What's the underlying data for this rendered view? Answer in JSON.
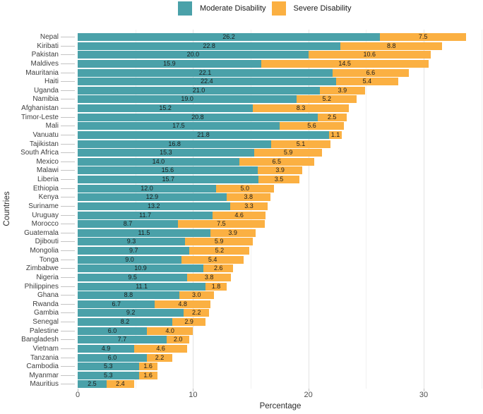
{
  "legend": {
    "items": [
      {
        "label": "Moderate Disability",
        "color": "#4aa1a9"
      },
      {
        "label": "Severe Disability",
        "color": "#fbb042"
      }
    ]
  },
  "axes": {
    "x_title": "Percentage",
    "y_title": "Countries",
    "x_tick_labels": [
      "0",
      "10",
      "20",
      "30"
    ]
  },
  "chart_data": {
    "type": "bar",
    "orientation": "horizontal",
    "stacked": true,
    "title": "",
    "xlabel": "Percentage",
    "ylabel": "Countries",
    "xlim": [
      0,
      35.2
    ],
    "xticks": [
      0,
      10,
      20,
      30
    ],
    "minor_ticks": [
      5,
      15,
      25,
      35
    ],
    "grid": true,
    "legend_position": "top",
    "value_labels": true,
    "value_label_format": "one-decimal",
    "categories": [
      "Nepal",
      "Kiribati",
      "Pakistan",
      "Maldives",
      "Mauritania",
      "Haiti",
      "Uganda",
      "Namibia",
      "Afghanistan",
      "Timor-Leste",
      "Mali",
      "Vanuatu",
      "Tajikistan",
      "South Africa",
      "Mexico",
      "Malawi",
      "Liberia",
      "Ethiopia",
      "Kenya",
      "Suriname",
      "Uruguay",
      "Morocco",
      "Guatemala",
      "Djibouti",
      "Mongolia",
      "Tonga",
      "Zimbabwe",
      "Nigeria",
      "Philippines",
      "Ghana",
      "Rwanda",
      "Gambia",
      "Senegal",
      "Palestine",
      "Bangladesh",
      "Vietnam",
      "Tanzania",
      "Cambodia",
      "Myanmar",
      "Mauritius"
    ],
    "series": [
      {
        "name": "Moderate Disability",
        "color": "#4aa1a9",
        "values": [
          26.2,
          22.8,
          20.0,
          15.9,
          22.1,
          22.4,
          21.0,
          19.0,
          15.2,
          20.8,
          17.5,
          21.8,
          16.8,
          15.3,
          14.0,
          15.6,
          15.7,
          12.0,
          12.9,
          13.2,
          11.7,
          8.7,
          11.5,
          9.3,
          9.7,
          9.0,
          10.9,
          9.5,
          11.1,
          8.8,
          6.7,
          9.2,
          8.2,
          6.0,
          7.7,
          4.9,
          6.0,
          5.3,
          5.3,
          2.5
        ]
      },
      {
        "name": "Severe Disability",
        "color": "#fbb042",
        "values": [
          7.5,
          8.8,
          10.6,
          14.5,
          6.6,
          5.4,
          3.9,
          5.2,
          8.3,
          2.5,
          5.6,
          1.1,
          5.1,
          5.9,
          6.5,
          3.9,
          3.5,
          5.0,
          3.8,
          3.3,
          4.6,
          7.5,
          3.9,
          5.9,
          5.2,
          5.4,
          2.6,
          3.8,
          1.8,
          3.0,
          4.8,
          2.2,
          2.9,
          4.0,
          2.0,
          4.6,
          2.2,
          1.6,
          1.6,
          2.4
        ]
      }
    ]
  }
}
